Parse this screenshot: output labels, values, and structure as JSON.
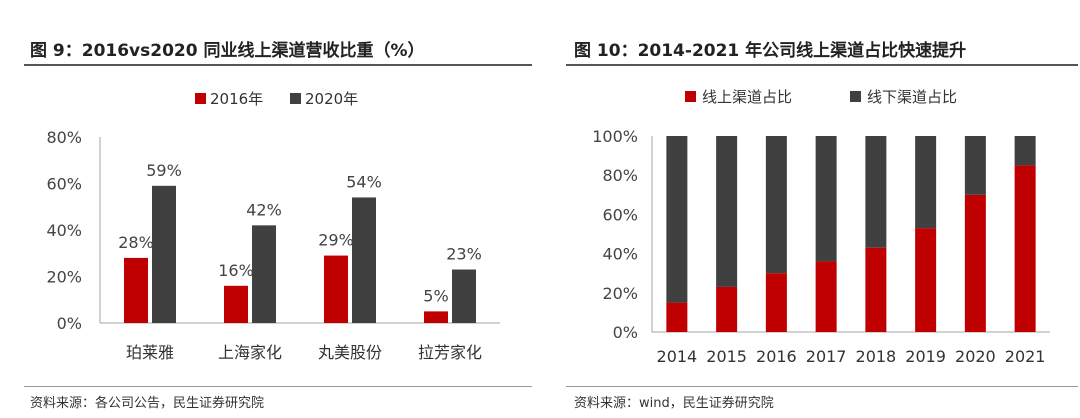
{
  "left": {
    "title": "图 9：2016vs2020 同业线上渠道营收比重（%）",
    "source": "资料来源：各公司公告，民生证券研究院"
  },
  "right": {
    "title": "图 10：2014-2021 年公司线上渠道占比快速提升",
    "source": "资料来源：wind，民生证券研究院"
  },
  "colors": {
    "red": "#C00000",
    "dark": "#404040",
    "axis": "#a6a6a6"
  },
  "chart_data": [
    {
      "type": "bar",
      "title": "",
      "categories": [
        "珀莱雅",
        "上海家化",
        "丸美股份",
        "拉芳家化"
      ],
      "series": [
        {
          "name": "2016年",
          "values": [
            28,
            16,
            29,
            5
          ],
          "labels": [
            "28%",
            "16%",
            "29%",
            "5%"
          ]
        },
        {
          "name": "2020年",
          "values": [
            59,
            42,
            54,
            23
          ],
          "labels": [
            "59%",
            "42%",
            "54%",
            "23%"
          ]
        }
      ],
      "ylim": [
        0,
        80
      ],
      "yticks": [
        "0%",
        "20%",
        "40%",
        "60%",
        "80%"
      ],
      "legend": "top-center",
      "grid": false
    },
    {
      "type": "bar",
      "stacked": true,
      "title": "",
      "categories": [
        "2014",
        "2015",
        "2016",
        "2017",
        "2018",
        "2019",
        "2020",
        "2021"
      ],
      "series": [
        {
          "name": "线上渠道占比",
          "values": [
            15,
            23,
            30,
            36,
            43,
            53,
            70,
            85
          ]
        },
        {
          "name": "线下渠道占比",
          "values": [
            85,
            77,
            70,
            64,
            57,
            47,
            30,
            15
          ]
        }
      ],
      "ylim": [
        0,
        100
      ],
      "yticks": [
        "0%",
        "20%",
        "40%",
        "60%",
        "80%",
        "100%"
      ],
      "legend": "top-center",
      "grid": false
    }
  ]
}
